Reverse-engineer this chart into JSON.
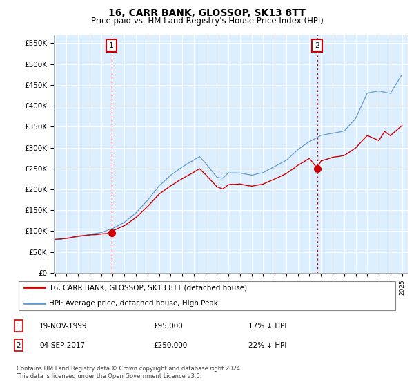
{
  "title": "16, CARR BANK, GLOSSOP, SK13 8TT",
  "subtitle": "Price paid vs. HM Land Registry's House Price Index (HPI)",
  "ylabel_ticks": [
    "£0",
    "£50K",
    "£100K",
    "£150K",
    "£200K",
    "£250K",
    "£300K",
    "£350K",
    "£400K",
    "£450K",
    "£500K",
    "£550K"
  ],
  "ytick_values": [
    0,
    50000,
    100000,
    150000,
    200000,
    250000,
    300000,
    350000,
    400000,
    450000,
    500000,
    550000
  ],
  "ylim": [
    0,
    570000
  ],
  "xlim_start": 1994.9,
  "xlim_end": 2025.5,
  "legend_line1": "16, CARR BANK, GLOSSOP, SK13 8TT (detached house)",
  "legend_line2": "HPI: Average price, detached house, High Peak",
  "sale1_date": "19-NOV-1999",
  "sale1_price": 95000,
  "sale1_label": "17% ↓ HPI",
  "sale1_x": 1999.89,
  "sale2_date": "04-SEP-2017",
  "sale2_price": 250000,
  "sale2_label": "22% ↓ HPI",
  "sale2_x": 2017.67,
  "red_color": "#cc0000",
  "blue_color": "#6699cc",
  "blue_fill": "#ddeeff",
  "annotation_box_color": "#cc0000",
  "footer_text": "Contains HM Land Registry data © Crown copyright and database right 2024.\nThis data is licensed under the Open Government Licence v3.0.",
  "bg_color": "#ddeeff"
}
